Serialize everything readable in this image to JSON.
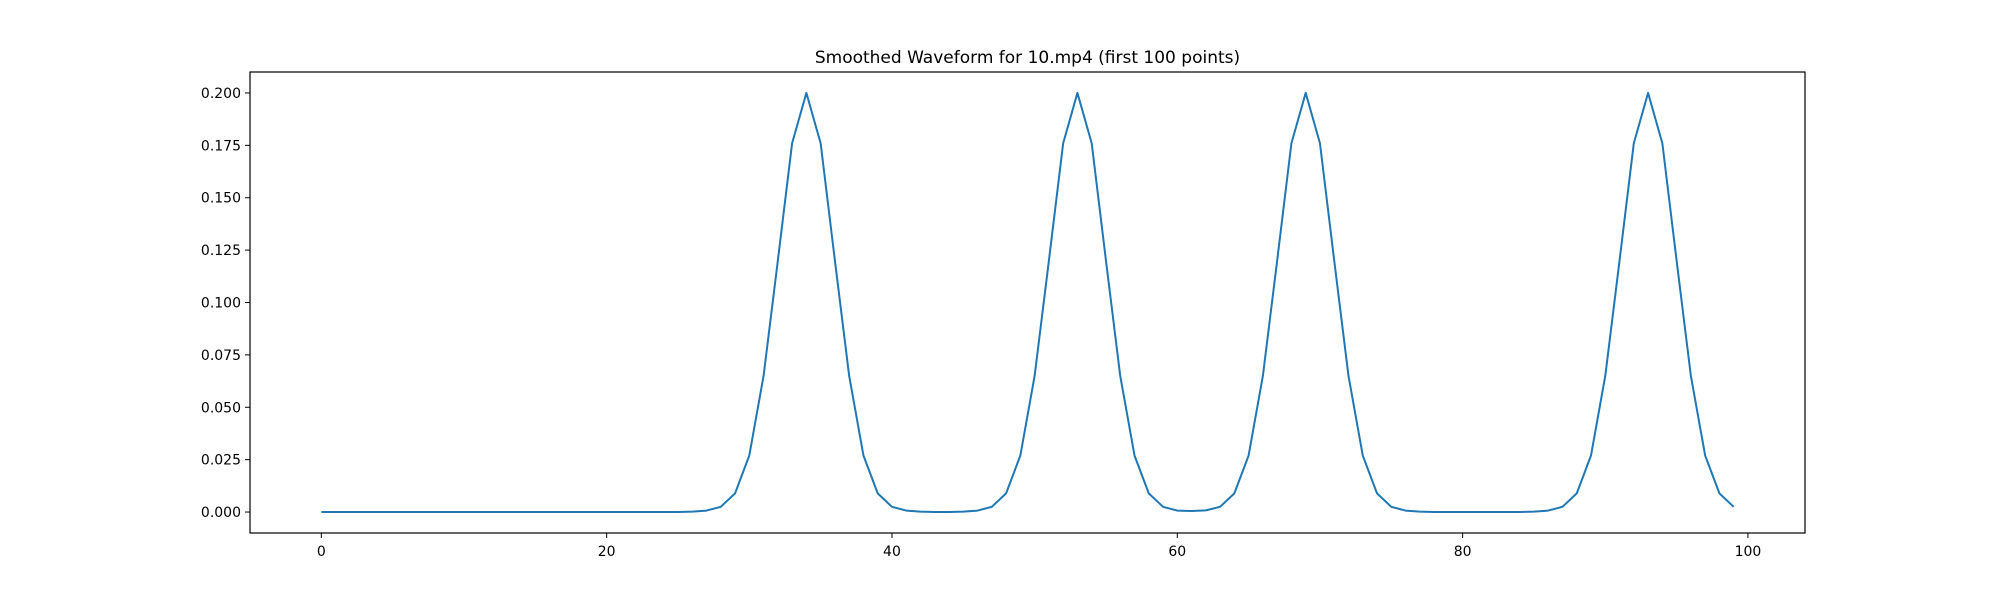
{
  "chart_data": {
    "type": "line",
    "title": "Smoothed Waveform for 10.mp4 (first 100 points)",
    "xlabel": "",
    "ylabel": "",
    "xlim": [
      -5,
      104
    ],
    "ylim": [
      -0.01,
      0.21
    ],
    "xticks": [
      0,
      20,
      40,
      60,
      80,
      100
    ],
    "yticks": [
      0.0,
      0.025,
      0.05,
      0.075,
      0.1,
      0.125,
      0.15,
      0.175,
      0.2
    ],
    "xtick_labels": [
      "0",
      "20",
      "40",
      "60",
      "80",
      "100"
    ],
    "ytick_labels": [
      "0.000",
      "0.025",
      "0.050",
      "0.075",
      "0.100",
      "0.125",
      "0.150",
      "0.175",
      "0.200"
    ],
    "grid": false,
    "series": [
      {
        "color": "#1f77b4",
        "x": [
          0,
          1,
          2,
          3,
          4,
          5,
          6,
          7,
          8,
          9,
          10,
          11,
          12,
          13,
          14,
          15,
          16,
          17,
          18,
          19,
          20,
          21,
          22,
          23,
          24,
          25,
          26,
          27,
          28,
          29,
          30,
          31,
          32,
          33,
          34,
          35,
          36,
          37,
          38,
          39,
          40,
          41,
          42,
          43,
          44,
          45,
          46,
          47,
          48,
          49,
          50,
          51,
          52,
          53,
          54,
          55,
          56,
          57,
          58,
          59,
          60,
          61,
          62,
          63,
          64,
          65,
          66,
          67,
          68,
          69,
          70,
          71,
          72,
          73,
          74,
          75,
          76,
          77,
          78,
          79,
          80,
          81,
          82,
          83,
          84,
          85,
          86,
          87,
          88,
          89,
          90,
          91,
          92,
          93,
          94,
          95,
          96,
          97,
          98,
          99
        ],
        "y": [
          0,
          0,
          0,
          0,
          0,
          0,
          0,
          0,
          0,
          0,
          0,
          0,
          0,
          0,
          0,
          0,
          0,
          0,
          0,
          0,
          0,
          0,
          0,
          0,
          0,
          0,
          0.0002,
          0.0007,
          0.0025,
          0.0089,
          0.027,
          0.065,
          0.12,
          0.176,
          0.2,
          0.176,
          0.12,
          0.065,
          0.027,
          0.0089,
          0.0025,
          0.0007,
          0.0002,
          0,
          0,
          0.0002,
          0.0007,
          0.0025,
          0.0089,
          0.027,
          0.065,
          0.12,
          0.176,
          0.2,
          0.176,
          0.12,
          0.065,
          0.027,
          0.0089,
          0.0025,
          0.0007,
          0.0005,
          0.0008,
          0.0025,
          0.0089,
          0.027,
          0.065,
          0.12,
          0.176,
          0.2,
          0.176,
          0.12,
          0.065,
          0.027,
          0.0089,
          0.0025,
          0.0007,
          0.0002,
          0,
          0,
          0,
          0,
          0,
          0,
          0,
          0.0002,
          0.0007,
          0.0025,
          0.0089,
          0.027,
          0.065,
          0.12,
          0.176,
          0.2,
          0.176,
          0.12,
          0.065,
          0.027,
          0.0089,
          0.0025
        ]
      }
    ]
  }
}
